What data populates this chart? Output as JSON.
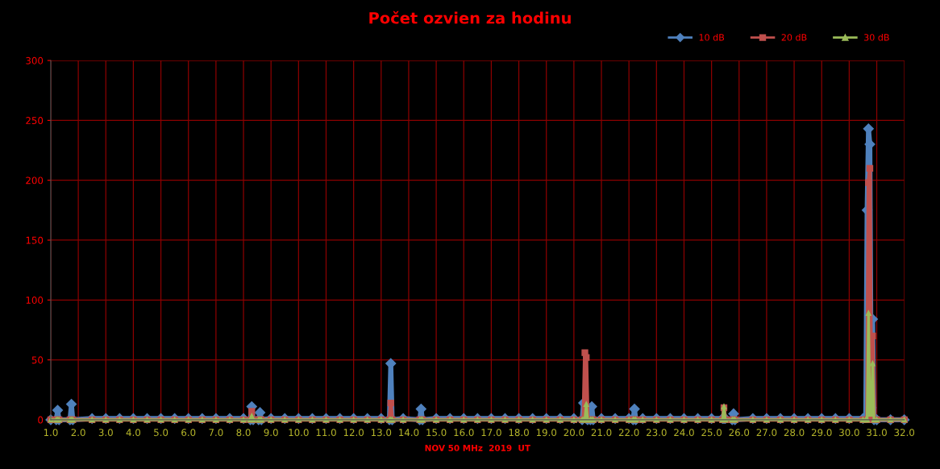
{
  "chart_data": {
    "type": "line",
    "title": "Počet ozvien za hodinu",
    "xlabel": "NOV 50 MHz  2019  UT",
    "x": [
      1.0,
      1.2,
      1.25,
      1.3,
      1.7,
      1.75,
      1.8,
      2.5,
      3.0,
      3.5,
      4.0,
      4.5,
      5.0,
      5.5,
      6.0,
      6.5,
      7.0,
      7.5,
      8.0,
      8.25,
      8.3,
      8.35,
      8.55,
      8.6,
      8.65,
      9.0,
      9.5,
      10.0,
      10.5,
      11.0,
      11.5,
      12.0,
      12.5,
      13.0,
      13.3,
      13.35,
      13.4,
      13.8,
      14.4,
      14.45,
      14.5,
      15.0,
      15.5,
      16.0,
      16.5,
      17.0,
      17.5,
      18.0,
      18.5,
      19.0,
      19.5,
      20.0,
      20.3,
      20.35,
      20.4,
      20.45,
      20.5,
      20.6,
      20.65,
      20.7,
      21.0,
      21.5,
      22.0,
      22.15,
      22.2,
      22.25,
      22.5,
      23.0,
      23.5,
      24.0,
      24.5,
      25.0,
      25.4,
      25.45,
      25.5,
      25.75,
      25.8,
      25.85,
      26.5,
      27.0,
      27.5,
      28.0,
      28.5,
      29.0,
      29.5,
      30.0,
      30.5,
      30.6,
      30.65,
      30.7,
      30.75,
      30.8,
      30.85,
      30.9,
      31.0,
      31.5,
      32.0
    ],
    "series": [
      {
        "name": "10 dB",
        "color": "#4f81bd",
        "marker": "diamond",
        "values": [
          0,
          0,
          8,
          0,
          0,
          13,
          0,
          1,
          1,
          1,
          1,
          1,
          1,
          1,
          1,
          1,
          1,
          1,
          1,
          0,
          11,
          0,
          0,
          6,
          0,
          1,
          1,
          1,
          1,
          1,
          1,
          1,
          1,
          1,
          0,
          47,
          0,
          1,
          0,
          9,
          0,
          1,
          1,
          1,
          1,
          1,
          1,
          1,
          1,
          1,
          1,
          1,
          0,
          14,
          2,
          1,
          0,
          0,
          11,
          0,
          1,
          1,
          1,
          0,
          9,
          0,
          1,
          1,
          1,
          1,
          1,
          1,
          1,
          1,
          1,
          0,
          5,
          0,
          1,
          1,
          1,
          1,
          1,
          1,
          1,
          1,
          1,
          2,
          175,
          243,
          230,
          10,
          84,
          0,
          0,
          0,
          0
        ]
      },
      {
        "name": "20 dB",
        "color": "#c0504d",
        "marker": "square",
        "values": [
          0,
          0,
          0,
          0,
          0,
          0,
          0,
          0,
          0,
          0,
          0,
          0,
          0,
          0,
          0,
          0,
          0,
          0,
          0,
          0,
          7,
          0,
          0,
          0,
          0,
          0,
          0,
          0,
          0,
          0,
          0,
          0,
          0,
          0,
          0,
          14,
          0,
          0,
          0,
          0,
          0,
          0,
          0,
          0,
          0,
          0,
          0,
          0,
          0,
          0,
          0,
          0,
          0,
          0,
          56,
          52,
          0,
          0,
          0,
          0,
          0,
          0,
          0,
          0,
          0,
          0,
          0,
          0,
          0,
          0,
          0,
          0,
          0,
          10,
          0,
          0,
          0,
          0,
          0,
          0,
          0,
          0,
          0,
          0,
          0,
          0,
          0,
          0,
          0,
          198,
          210,
          0,
          70,
          0,
          0,
          0,
          0
        ]
      },
      {
        "name": "30 dB",
        "color": "#9bbb59",
        "marker": "triangle",
        "values": [
          0,
          0,
          0,
          0,
          0,
          0,
          0,
          0,
          0,
          0,
          0,
          0,
          0,
          0,
          0,
          0,
          0,
          0,
          0,
          0,
          3,
          0,
          0,
          0,
          0,
          0,
          0,
          0,
          0,
          0,
          0,
          0,
          0,
          0,
          0,
          0,
          0,
          0,
          0,
          0,
          0,
          0,
          0,
          0,
          0,
          0,
          0,
          0,
          0,
          0,
          0,
          0,
          0,
          0,
          0,
          13,
          0,
          0,
          0,
          0,
          0,
          0,
          0,
          0,
          0,
          0,
          0,
          0,
          0,
          0,
          0,
          0,
          0,
          11,
          0,
          0,
          0,
          0,
          0,
          0,
          0,
          0,
          0,
          0,
          0,
          0,
          0,
          0,
          0,
          89,
          5,
          5,
          47,
          0,
          0,
          0,
          0
        ]
      }
    ],
    "xlim": [
      1.0,
      32.0
    ],
    "xticks": [
      {
        "value": 1,
        "label": "1.0"
      },
      {
        "value": 2,
        "label": "2.0"
      },
      {
        "value": 3,
        "label": "3.0"
      },
      {
        "value": 4,
        "label": "4.0"
      },
      {
        "value": 5,
        "label": "5.0"
      },
      {
        "value": 6,
        "label": "6.0"
      },
      {
        "value": 7,
        "label": "7.0"
      },
      {
        "value": 8,
        "label": "8.0"
      },
      {
        "value": 9,
        "label": "9.0"
      },
      {
        "value": 10,
        "label": "10.0"
      },
      {
        "value": 11,
        "label": "11.0"
      },
      {
        "value": 12,
        "label": "12.0"
      },
      {
        "value": 13,
        "label": "13.0"
      },
      {
        "value": 14,
        "label": "14.0"
      },
      {
        "value": 15,
        "label": "15.0"
      },
      {
        "value": 16,
        "label": "16.0"
      },
      {
        "value": 17,
        "label": "17.0"
      },
      {
        "value": 18,
        "label": "18.0"
      },
      {
        "value": 19,
        "label": "19.0"
      },
      {
        "value": 20,
        "label": "20.0"
      },
      {
        "value": 21,
        "label": "21.0"
      },
      {
        "value": 22,
        "label": "22.0"
      },
      {
        "value": 23,
        "label": "23.0"
      },
      {
        "value": 24,
        "label": "24.0"
      },
      {
        "value": 25,
        "label": "25.0"
      },
      {
        "value": 26,
        "label": "26.0"
      },
      {
        "value": 27,
        "label": "27.0"
      },
      {
        "value": 28,
        "label": "28.0"
      },
      {
        "value": 29,
        "label": "29.0"
      },
      {
        "value": 30,
        "label": "30.0"
      },
      {
        "value": 31,
        "label": "31.0"
      },
      {
        "value": 32,
        "label": "32.0"
      }
    ],
    "ylim": [
      0,
      300
    ],
    "yticks": [
      0,
      50,
      100,
      150,
      200,
      250,
      300
    ],
    "grid": true,
    "legend": "top right",
    "line_style": "solid"
  }
}
